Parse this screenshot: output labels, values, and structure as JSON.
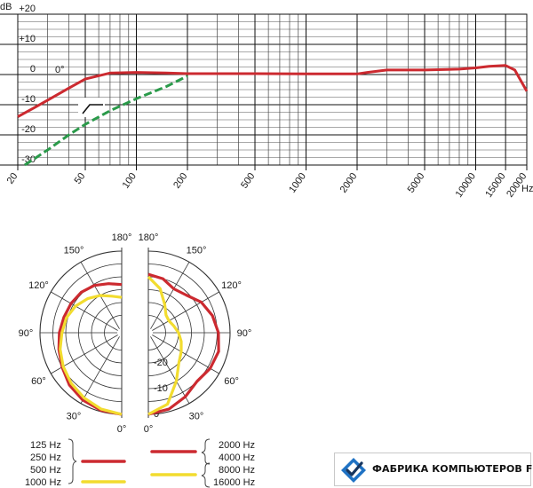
{
  "chart_data": [
    {
      "type": "line",
      "xscale": "log",
      "xlabel": "Hz",
      "ylabel": "dB",
      "xlim": [
        20,
        20000
      ],
      "ylim": [
        -30,
        20
      ],
      "x_ticks": [
        20,
        50,
        100,
        200,
        500,
        1000,
        2000,
        5000,
        10000,
        15000,
        20000
      ],
      "x_tick_labels": [
        "20",
        "50",
        "100",
        "200",
        "500",
        "1000",
        "2000",
        "5000",
        "10000",
        "15000",
        "20000"
      ],
      "y_ticks": [
        20,
        10,
        0,
        -10,
        -20,
        -30
      ],
      "y_tick_labels": [
        "+20",
        "+10",
        "0",
        "-10",
        "-20",
        "-30"
      ],
      "grid": true,
      "annotations": [
        "0°"
      ],
      "highpass_symbol": "bass-cut-icon",
      "series": [
        {
          "color": "#cc2a30",
          "x": [
            20,
            25,
            30,
            40,
            50,
            70,
            100,
            150,
            200,
            300,
            500,
            1000,
            2000,
            2300,
            3000,
            5000,
            8000,
            10000,
            12000,
            15000,
            17000,
            20000
          ],
          "y": [
            -14,
            -11,
            -8.5,
            -4.5,
            -1.5,
            0.5,
            0.7,
            0.5,
            0.3,
            0.3,
            0.3,
            0.2,
            0.2,
            0.7,
            1.5,
            1.5,
            1.8,
            2.2,
            2.7,
            3.0,
            1.5,
            -5.5
          ]
        },
        {
          "color": "#2a9a4a",
          "style": "dashed",
          "x": [
            22,
            30,
            40,
            50,
            70,
            100,
            150,
            200
          ],
          "y": [
            -30,
            -25,
            -20,
            -16.5,
            -12,
            -8,
            -4,
            -0.5
          ]
        }
      ]
    },
    {
      "type": "polar",
      "half": "left",
      "angles": [
        0,
        30,
        60,
        90,
        120,
        150,
        180
      ],
      "angle_labels": [
        "0°",
        "30°",
        "60°",
        "90°",
        "120°",
        "150°",
        "180°"
      ],
      "rlim": [
        -30,
        0
      ],
      "series": [
        {
          "name": "125 Hz 250 Hz 500 Hz",
          "color": "#cc2a30",
          "theta": [
            0,
            15,
            30,
            45,
            60,
            75,
            90,
            105,
            120,
            135,
            150,
            165,
            180
          ],
          "r": [
            0,
            -0.5,
            -1.5,
            -3,
            -5,
            -6.5,
            -7.5,
            -8.5,
            -9,
            -9.5,
            -10.5,
            -12,
            -13
          ]
        },
        {
          "name": "1000 Hz",
          "color": "#f2dc2f",
          "theta": [
            0,
            15,
            30,
            45,
            60,
            75,
            90,
            105,
            120,
            135,
            150,
            165,
            180
          ],
          "r": [
            0,
            -1,
            -2.5,
            -4,
            -5.5,
            -7,
            -8.5,
            -9.5,
            -11,
            -13,
            -15,
            -17,
            -18
          ]
        }
      ]
    },
    {
      "type": "polar",
      "half": "right",
      "angles": [
        0,
        30,
        60,
        90,
        120,
        150,
        180
      ],
      "angle_labels": [
        "0°",
        "30°",
        "60°",
        "90°",
        "120°",
        "150°",
        "180°"
      ],
      "r_ticks": [
        0,
        -10,
        -20
      ],
      "r_tick_labels": [
        "0",
        "-10",
        "-20"
      ],
      "rlim": [
        -30,
        0
      ],
      "series": [
        {
          "name": "2000 Hz 4000 Hz",
          "color": "#cc2a30",
          "theta": [
            0,
            15,
            30,
            45,
            60,
            75,
            90,
            105,
            120,
            135,
            150,
            165,
            180
          ],
          "r": [
            0,
            -1,
            -3,
            -5,
            -4,
            -3.5,
            -4.5,
            -6,
            -8,
            -11,
            -12,
            -10,
            -9
          ]
        },
        {
          "name": "8000 Hz 16000 Hz",
          "color": "#f2dc2f",
          "theta": [
            0,
            15,
            30,
            45,
            60,
            75,
            90,
            105,
            120,
            135,
            150,
            165,
            180
          ],
          "r": [
            0,
            -3,
            -10,
            -15,
            -17,
            -18.5,
            -20,
            -21.5,
            -22.5,
            -22,
            -19,
            -14,
            -10
          ]
        }
      ]
    }
  ],
  "legend": {
    "left_labels": [
      "125 Hz",
      "250 Hz",
      "500 Hz",
      "1000 Hz"
    ],
    "right_labels": [
      "2000 Hz",
      "4000 Hz",
      "8000 Hz",
      "16000 Hz"
    ],
    "low_color": "#cc2a30",
    "high_color": "#f2dc2f"
  },
  "logo": {
    "text": "ФАБРИКА КОМПЬЮТЕРОВ FK.BY",
    "icon": "fk-logo-icon",
    "colors": [
      "#1f72c4",
      "#3aa0e0",
      "#16355f"
    ]
  }
}
